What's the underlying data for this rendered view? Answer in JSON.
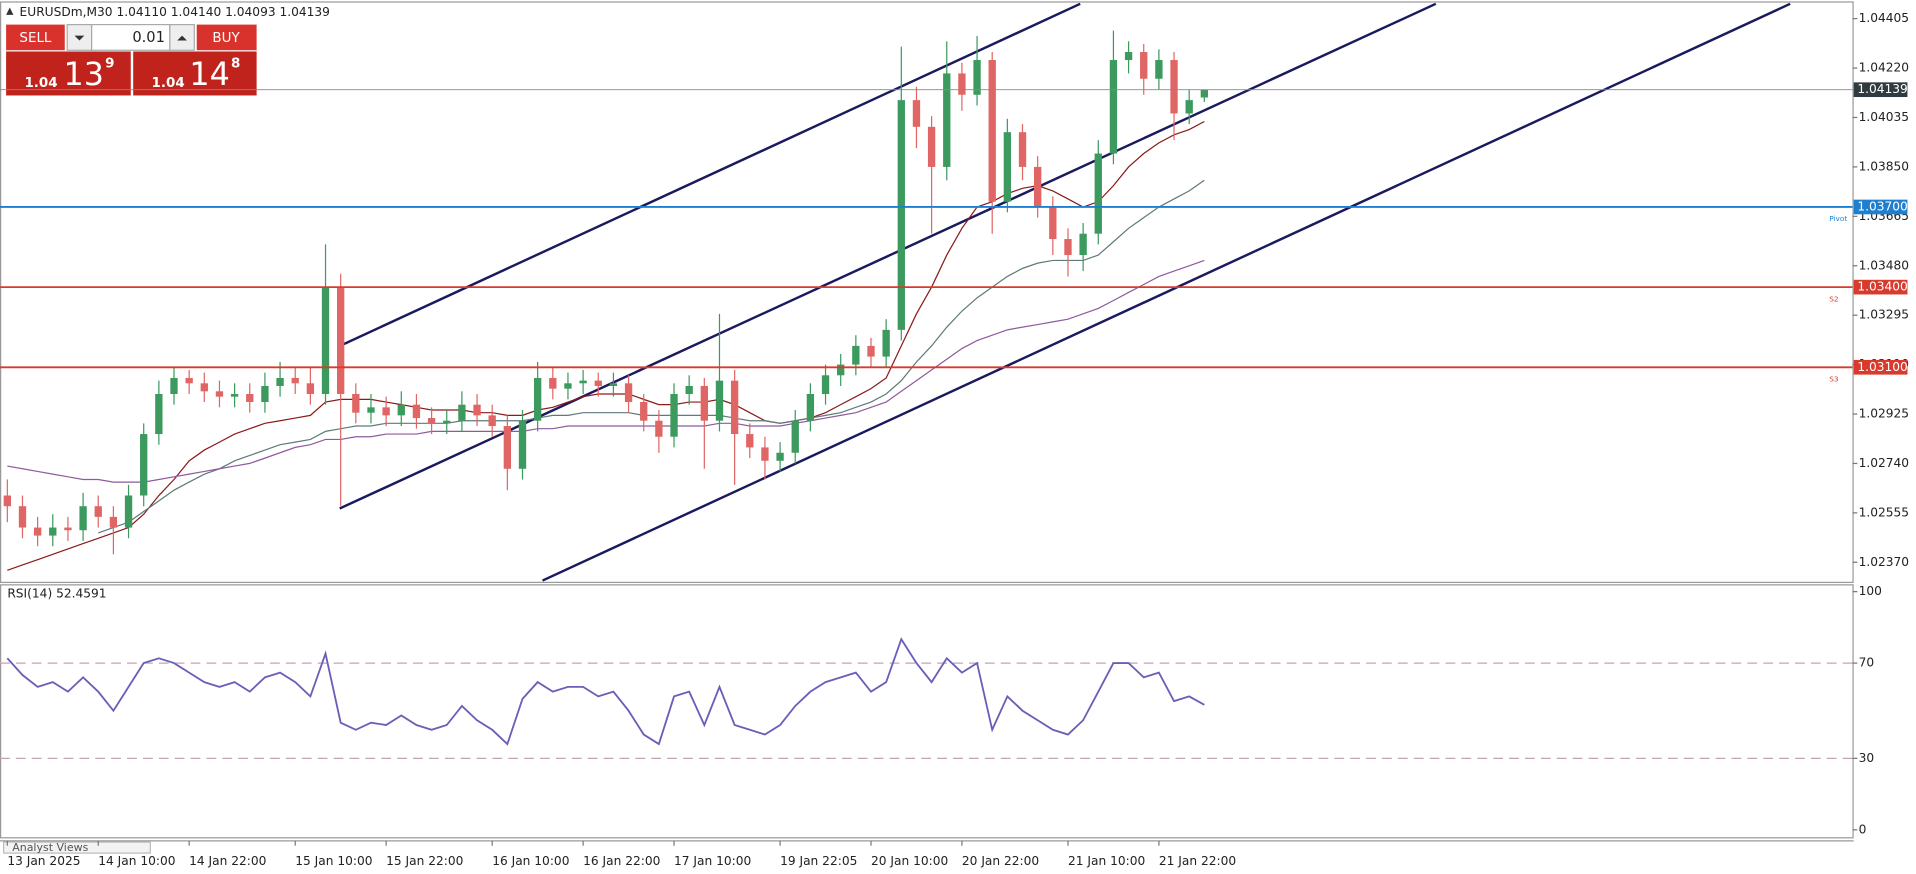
{
  "trade_panel": {
    "sell": "SELL",
    "buy": "BUY",
    "lot": "0.01",
    "bid": [
      "1.04",
      "13",
      "9"
    ],
    "ask": [
      "1.04",
      "14",
      "8"
    ]
  },
  "tab": "Analyst Views",
  "chart_data": [
    {
      "type": "candlestick",
      "title": "EURUSDm,M30  1.04110 1.04140 1.04093 1.04139",
      "categories": [
        "13 Jan 2025",
        null,
        null,
        null,
        null,
        null,
        "14 Jan 10:00",
        null,
        null,
        null,
        null,
        null,
        "14 Jan 22:00",
        null,
        null,
        null,
        null,
        null,
        null,
        "15 Jan 10:00",
        null,
        null,
        null,
        null,
        null,
        "15 Jan 22:00",
        null,
        null,
        null,
        null,
        null,
        null,
        "16 Jan 10:00",
        null,
        null,
        null,
        null,
        null,
        "16 Jan 22:00",
        null,
        null,
        null,
        null,
        null,
        "17 Jan 10:00",
        null,
        null,
        null,
        null,
        null,
        null,
        "19 Jan 22:05",
        null,
        null,
        null,
        null,
        null,
        "20 Jan 10:00",
        null,
        null,
        null,
        null,
        null,
        "20 Jan 22:00",
        null,
        null,
        null,
        null,
        null,
        null,
        "21 Jan 10:00",
        null,
        null,
        null,
        null,
        null,
        "21 Jan 22:00",
        null,
        null,
        null
      ],
      "open": [
        1.0262,
        1.0258,
        1.025,
        1.0247,
        1.025,
        1.0249,
        1.0258,
        1.0254,
        1.025,
        1.0262,
        1.0285,
        1.03,
        1.0306,
        1.0304,
        1.0301,
        1.0299,
        1.03,
        1.0297,
        1.0303,
        1.0306,
        1.0304,
        1.03,
        1.034,
        1.03,
        1.0293,
        1.0295,
        1.0292,
        1.0296,
        1.0291,
        1.0289,
        1.029,
        1.0296,
        1.0292,
        1.0288,
        1.0272,
        1.029,
        1.0306,
        1.0302,
        1.0304,
        1.0305,
        1.0303,
        1.0304,
        1.0297,
        1.029,
        1.0284,
        1.03,
        1.0303,
        1.029,
        1.0305,
        1.0285,
        1.028,
        1.0275,
        1.0278,
        1.029,
        1.03,
        1.0307,
        1.0311,
        1.0318,
        1.0314,
        1.0324,
        1.041,
        1.04,
        1.0385,
        1.042,
        1.0412,
        1.0425,
        1.0372,
        1.0398,
        1.0385,
        1.037,
        1.0358,
        1.0352,
        1.036,
        1.039,
        1.0425,
        1.0428,
        1.0418,
        1.0425,
        1.0405,
        1.0411
      ],
      "high": [
        1.0268,
        1.0262,
        1.0254,
        1.0255,
        1.0254,
        1.0263,
        1.0262,
        1.0258,
        1.0266,
        1.0289,
        1.0305,
        1.031,
        1.0309,
        1.0308,
        1.0305,
        1.0304,
        1.0304,
        1.0308,
        1.0312,
        1.031,
        1.031,
        1.0356,
        1.0345,
        1.0304,
        1.03,
        1.0299,
        1.0301,
        1.03,
        1.0295,
        1.0294,
        1.0301,
        1.03,
        1.0296,
        1.0292,
        1.0294,
        1.0312,
        1.031,
        1.0308,
        1.0309,
        1.0308,
        1.0308,
        1.0307,
        1.03,
        1.0294,
        1.0304,
        1.0307,
        1.0306,
        1.033,
        1.0309,
        1.0289,
        1.0284,
        1.0282,
        1.0294,
        1.0304,
        1.0311,
        1.0315,
        1.0322,
        1.0321,
        1.0328,
        1.043,
        1.0415,
        1.0404,
        1.0432,
        1.0424,
        1.0434,
        1.0428,
        1.0403,
        1.0401,
        1.0389,
        1.0374,
        1.0362,
        1.0364,
        1.0395,
        1.0436,
        1.0432,
        1.0431,
        1.0429,
        1.0428,
        1.0414,
        1.0414
      ],
      "low": [
        1.0252,
        1.0246,
        1.0243,
        1.0243,
        1.0245,
        1.0245,
        1.025,
        1.024,
        1.0246,
        1.0258,
        1.0281,
        1.0296,
        1.03,
        1.0297,
        1.0295,
        1.0295,
        1.0293,
        1.0293,
        1.0299,
        1.03,
        1.0296,
        1.0296,
        1.0258,
        1.0289,
        1.0289,
        1.0288,
        1.0288,
        1.0287,
        1.0285,
        1.0285,
        1.0286,
        1.0288,
        1.0284,
        1.0264,
        1.0268,
        1.0286,
        1.0298,
        1.0298,
        1.03,
        1.0299,
        1.0299,
        1.0293,
        1.0286,
        1.0278,
        1.028,
        1.0296,
        1.0272,
        1.0286,
        1.0266,
        1.0276,
        1.0268,
        1.0271,
        1.0274,
        1.0286,
        1.0296,
        1.0303,
        1.0307,
        1.031,
        1.031,
        1.032,
        1.0392,
        1.036,
        1.038,
        1.0406,
        1.0408,
        1.036,
        1.0368,
        1.038,
        1.0366,
        1.0352,
        1.0344,
        1.0346,
        1.0356,
        1.0386,
        1.042,
        1.0412,
        1.0414,
        1.0395,
        1.0401,
        1.04093
      ],
      "close": [
        1.0258,
        1.025,
        1.0247,
        1.025,
        1.0249,
        1.0258,
        1.0254,
        1.025,
        1.0262,
        1.0285,
        1.03,
        1.0306,
        1.0304,
        1.0301,
        1.0299,
        1.03,
        1.0297,
        1.0303,
        1.0306,
        1.0304,
        1.03,
        1.034,
        1.03,
        1.0293,
        1.0295,
        1.0292,
        1.0296,
        1.0291,
        1.0289,
        1.029,
        1.0296,
        1.0292,
        1.0288,
        1.0272,
        1.029,
        1.0306,
        1.0302,
        1.0304,
        1.0305,
        1.0303,
        1.0304,
        1.0297,
        1.029,
        1.0284,
        1.03,
        1.0303,
        1.029,
        1.0305,
        1.0285,
        1.028,
        1.0275,
        1.0278,
        1.029,
        1.03,
        1.0307,
        1.0311,
        1.0318,
        1.0314,
        1.0324,
        1.041,
        1.04,
        1.0385,
        1.042,
        1.0412,
        1.0425,
        1.0372,
        1.0398,
        1.0385,
        1.037,
        1.0358,
        1.0352,
        1.036,
        1.039,
        1.0425,
        1.0428,
        1.0418,
        1.0425,
        1.0405,
        1.041,
        1.04139
      ],
      "up_color": "#3c9a5f",
      "down_color": "#e06666",
      "lines": [
        {
          "color": "#8b1a1a",
          "values": [
            1.0234,
            1.0236,
            1.0238,
            1.024,
            1.0242,
            1.0244,
            1.0246,
            1.0248,
            1.025,
            1.0255,
            1.0262,
            1.0268,
            1.0275,
            1.0279,
            1.0282,
            1.0285,
            1.0287,
            1.0289,
            1.029,
            1.0291,
            1.0292,
            1.0297,
            1.0298,
            1.0298,
            1.0298,
            1.0297,
            1.0296,
            1.0295,
            1.0294,
            1.0294,
            1.0294,
            1.0293,
            1.0293,
            1.0292,
            1.0292,
            1.0294,
            1.0295,
            1.0297,
            1.0299,
            1.03,
            1.03,
            1.03,
            1.0298,
            1.0296,
            1.0296,
            1.0297,
            1.0297,
            1.0298,
            1.0296,
            1.0293,
            1.029,
            1.0289,
            1.029,
            1.0291,
            1.0293,
            1.0296,
            1.0299,
            1.0302,
            1.0306,
            1.0318,
            1.033,
            1.034,
            1.0352,
            1.0362,
            1.037,
            1.0372,
            1.0375,
            1.0377,
            1.0378,
            1.0376,
            1.0373,
            1.037,
            1.0372,
            1.0378,
            1.0385,
            1.039,
            1.0394,
            1.0397,
            1.0399,
            1.0402
          ]
        },
        {
          "color": "#5f7a7a",
          "values": [
            null,
            null,
            null,
            null,
            null,
            null,
            1.0248,
            1.025,
            1.0252,
            1.0256,
            1.026,
            1.0264,
            1.0267,
            1.027,
            1.0272,
            1.0275,
            1.0277,
            1.0279,
            1.0281,
            1.0282,
            1.0283,
            1.0286,
            1.0287,
            1.0288,
            1.0288,
            1.0289,
            1.0289,
            1.0289,
            1.0289,
            1.0289,
            1.029,
            1.029,
            1.029,
            1.029,
            1.029,
            1.0291,
            1.0292,
            1.0292,
            1.0293,
            1.0293,
            1.0293,
            1.0293,
            1.0292,
            1.0292,
            1.0292,
            1.0292,
            1.0292,
            1.0292,
            1.0291,
            1.029,
            1.029,
            1.0289,
            1.029,
            1.0291,
            1.0292,
            1.0293,
            1.0295,
            1.0297,
            1.03,
            1.0305,
            1.0312,
            1.0318,
            1.0325,
            1.0331,
            1.0336,
            1.034,
            1.0344,
            1.0347,
            1.0349,
            1.035,
            1.035,
            1.035,
            1.0352,
            1.0357,
            1.0362,
            1.0366,
            1.037,
            1.0373,
            1.0376,
            1.038
          ]
        },
        {
          "color": "#8e5a9e",
          "values": [
            1.0273,
            1.0272,
            1.0271,
            1.027,
            1.0269,
            1.0268,
            1.0268,
            1.0267,
            1.0267,
            1.0267,
            1.0268,
            1.0269,
            1.027,
            1.0271,
            1.0272,
            1.0273,
            1.0274,
            1.0276,
            1.0278,
            1.028,
            1.0281,
            1.0283,
            1.0283,
            1.0284,
            1.0284,
            1.0285,
            1.0285,
            1.0285,
            1.0286,
            1.0286,
            1.0286,
            1.0286,
            1.0286,
            1.0286,
            1.0286,
            1.0287,
            1.0287,
            1.0288,
            1.0288,
            1.0288,
            1.0288,
            1.0288,
            1.0288,
            1.0288,
            1.0288,
            1.0288,
            1.0288,
            1.0289,
            1.0289,
            1.0288,
            1.0288,
            1.0288,
            1.0289,
            1.029,
            1.0291,
            1.0292,
            1.0293,
            1.0295,
            1.0297,
            1.0301,
            1.0305,
            1.0309,
            1.0313,
            1.0317,
            1.032,
            1.0322,
            1.0324,
            1.0325,
            1.0326,
            1.0327,
            1.0328,
            1.033,
            1.0332,
            1.0335,
            1.0338,
            1.0341,
            1.0344,
            1.0346,
            1.0348,
            1.035
          ]
        }
      ],
      "levels": [
        {
          "value": 1.04139,
          "label": "1.04139",
          "color": "#2f3b40"
        },
        {
          "value": 1.037,
          "label": "1.03700",
          "color": "#1e7fd0",
          "tag": "Pivot"
        },
        {
          "value": 1.034,
          "label": "1.03400",
          "color": "#d83a2e",
          "tag": "S2"
        },
        {
          "value": 1.031,
          "label": "1.03100",
          "color": "#d83a2e",
          "tag": "S3"
        }
      ],
      "ylim": [
        1.02297,
        1.04465
      ],
      "yticks": [
        1.04405,
        {
          "value": 1.0422,
          "label": "1.04220"
        },
        1.04035,
        {
          "value": 1.0385,
          "label": "1.03850"
        },
        1.03665,
        {
          "value": 1.0348,
          "label": "1.03480"
        },
        1.03295,
        {
          "value": 1.0311,
          "label": "1.03110"
        },
        1.02925,
        {
          "value": 1.0274,
          "label": "1.02740"
        },
        1.02555,
        {
          "value": 1.0237,
          "label": "1.02370"
        }
      ]
    },
    {
      "type": "line",
      "title": "RSI(14) 52.4591",
      "color": "#6a5fb8",
      "values": [
        72,
        65,
        60,
        62,
        58,
        64,
        58,
        50,
        60,
        70,
        72,
        70,
        66,
        62,
        60,
        62,
        58,
        64,
        66,
        62,
        56,
        74,
        45,
        42,
        45,
        44,
        48,
        44,
        42,
        44,
        52,
        46,
        42,
        36,
        55,
        62,
        58,
        60,
        60,
        56,
        58,
        50,
        40,
        36,
        56,
        58,
        44,
        60,
        44,
        42,
        40,
        44,
        52,
        58,
        62,
        64,
        66,
        58,
        62,
        80,
        70,
        62,
        72,
        66,
        70,
        42,
        56,
        50,
        46,
        42,
        40,
        46,
        58,
        70,
        70,
        64,
        66,
        54,
        56,
        52.4591
      ],
      "ylim": [
        -3.6,
        103.1
      ],
      "yticks": [
        0,
        30,
        70,
        100
      ],
      "levels": [
        30,
        70
      ]
    }
  ]
}
